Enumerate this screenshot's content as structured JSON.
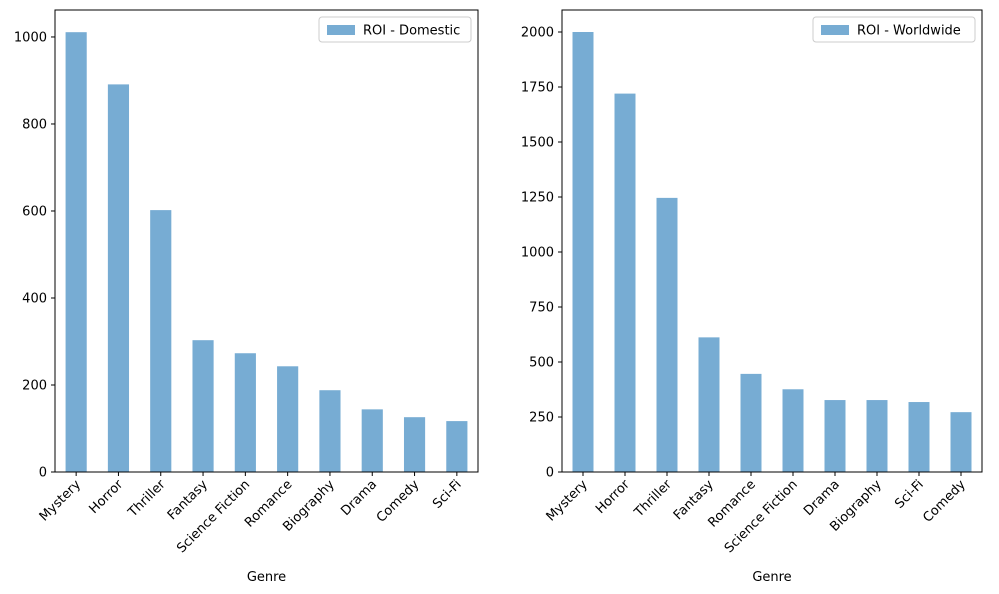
{
  "chart_data": [
    {
      "type": "bar",
      "categories": [
        "Mystery",
        "Horror",
        "Thriller",
        "Fantasy",
        "Science Fiction",
        "Romance",
        "Biography",
        "Drama",
        "Comedy",
        "Sci-Fi"
      ],
      "series": [
        {
          "name": "ROI - Domestic",
          "values": [
            1011,
            891,
            602,
            303,
            273,
            243,
            188,
            144,
            126,
            117
          ]
        }
      ],
      "title": "",
      "xlabel": "Genre",
      "ylabel": "",
      "ylim": [
        0,
        1062
      ],
      "yticks": [
        0,
        200,
        400,
        600,
        800,
        1000
      ],
      "legend_position": "top-right",
      "grid": false,
      "bar_color": "#77acd3"
    },
    {
      "type": "bar",
      "categories": [
        "Mystery",
        "Horror",
        "Thriller",
        "Fantasy",
        "Romance",
        "Science Fiction",
        "Drama",
        "Biography",
        "Sci-Fi",
        "Comedy"
      ],
      "series": [
        {
          "name": "ROI - Worldwide",
          "values": [
            2000,
            1720,
            1246,
            612,
            446,
            376,
            327,
            327,
            318,
            272
          ]
        }
      ],
      "title": "",
      "xlabel": "Genre",
      "ylabel": "",
      "ylim": [
        0,
        2100
      ],
      "yticks": [
        0,
        250,
        500,
        750,
        1000,
        1250,
        1500,
        1750,
        2000
      ],
      "legend_position": "top-right",
      "grid": false,
      "bar_color": "#77acd3"
    }
  ]
}
